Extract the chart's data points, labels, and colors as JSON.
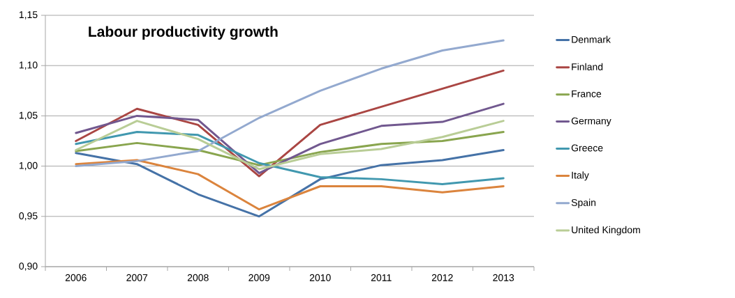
{
  "chart_data": {
    "type": "line",
    "title": "Labour productivity growth",
    "categories": [
      "2006",
      "2007",
      "2008",
      "2009",
      "2010",
      "2011",
      "2012",
      "2013"
    ],
    "series": [
      {
        "name": "Denmark",
        "color": "#4572a7",
        "values": [
          1.013,
          1.002,
          0.972,
          0.95,
          0.987,
          1.001,
          1.006,
          1.016
        ]
      },
      {
        "name": "Finland",
        "color": "#aa4643",
        "values": [
          1.025,
          1.057,
          1.041,
          0.99,
          1.041,
          1.059,
          1.077,
          1.095
        ]
      },
      {
        "name": "France",
        "color": "#89a54e",
        "values": [
          1.015,
          1.023,
          1.016,
          1.001,
          1.014,
          1.022,
          1.025,
          1.034
        ]
      },
      {
        "name": "Germany",
        "color": "#71588f",
        "values": [
          1.033,
          1.05,
          1.046,
          0.993,
          1.022,
          1.04,
          1.044,
          1.062
        ]
      },
      {
        "name": "Greece",
        "color": "#4198af",
        "values": [
          1.022,
          1.034,
          1.031,
          1.003,
          0.989,
          0.987,
          0.982,
          0.988
        ]
      },
      {
        "name": "Italy",
        "color": "#db843d",
        "values": [
          1.002,
          1.006,
          0.992,
          0.957,
          0.98,
          0.98,
          0.974,
          0.98
        ]
      },
      {
        "name": "Spain",
        "color": "#93a9cf",
        "values": [
          1.0,
          1.005,
          1.015,
          1.048,
          1.075,
          1.097,
          1.115,
          1.125
        ]
      },
      {
        "name": "United Kingdom",
        "color": "#b9cd96",
        "values": [
          1.016,
          1.045,
          1.027,
          0.997,
          1.012,
          1.017,
          1.029,
          1.045
        ]
      }
    ],
    "ylim": [
      0.9,
      1.15
    ],
    "yticks": [
      {
        "value": 0.9,
        "label": "0,90"
      },
      {
        "value": 0.95,
        "label": "0,95"
      },
      {
        "value": 1.0,
        "label": "1,00"
      },
      {
        "value": 1.05,
        "label": "1,05"
      },
      {
        "value": 1.1,
        "label": "1,10"
      },
      {
        "value": 1.15,
        "label": "1,15"
      }
    ],
    "grid": "y",
    "legend": "right",
    "marker": "none",
    "line_style": "solid"
  }
}
